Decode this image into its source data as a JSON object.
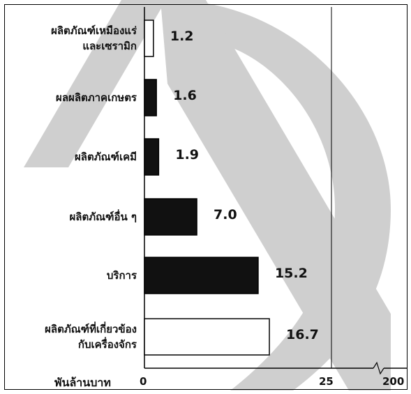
{
  "chart_data": {
    "type": "bar",
    "orientation": "horizontal",
    "categories": [
      [
        "ผลิตภัณฑ์เหมืองแร่",
        "และเซรามิก"
      ],
      [
        "ผลผลิตภาคเกษตร"
      ],
      [
        "ผลิตภัณฑ์เคมี"
      ],
      [
        "ผลิตภัณฑ์อื่น ๆ"
      ],
      [
        "บริการ"
      ],
      [
        "ผลิตภัณฑ์ที่เกี่ยวข้อง",
        "กับเครื่องจักร"
      ]
    ],
    "values": [
      1.2,
      1.6,
      1.9,
      7.0,
      15.2,
      16.7
    ],
    "value_labels": [
      "1.2",
      "1.6",
      "1.9",
      "7.0",
      "15.2",
      "16.7"
    ],
    "fills": [
      "white",
      "black",
      "black",
      "black",
      "black",
      "white"
    ],
    "xunit": "พันล้านบาท",
    "xticks": [
      "0",
      "25",
      "200"
    ],
    "xlim": [
      0,
      25
    ],
    "axis_break_after": 25,
    "grid": false,
    "colors": {
      "bar_dark": "#111111",
      "bar_light": "#ffffff",
      "watermark": "#c8c8c8"
    }
  }
}
